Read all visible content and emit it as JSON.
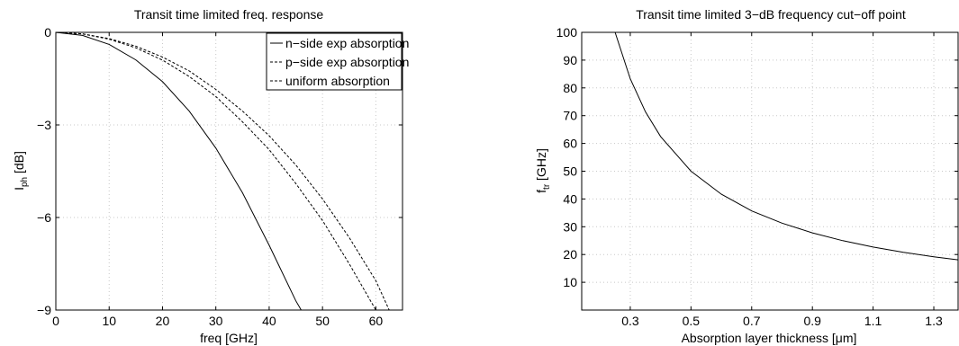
{
  "chart_data": [
    {
      "type": "line",
      "title": "Transit time limited freq. response",
      "xlabel": "freq [GHz]",
      "ylabel_main": "I",
      "ylabel_sub": "ph",
      "ylabel_unit": " [dB]",
      "xlim": [
        0,
        65
      ],
      "ylim": [
        -9,
        0
      ],
      "xticks": [
        0,
        10,
        20,
        30,
        40,
        50,
        60
      ],
      "yticks": [
        0,
        -3,
        -6,
        -9
      ],
      "grid": true,
      "legend_position": "top-right",
      "series": [
        {
          "name": "n−side exp absorption",
          "style": "solid",
          "x": [
            0,
            5,
            10,
            15,
            20,
            25,
            30,
            35,
            40,
            45,
            46
          ],
          "y": [
            0,
            -0.1,
            -0.39,
            -0.89,
            -1.6,
            -2.55,
            -3.75,
            -5.2,
            -6.9,
            -8.7,
            -9.0
          ]
        },
        {
          "name": "p−side exp absorption",
          "style": "dashed",
          "x": [
            0,
            5,
            10,
            15,
            20,
            25,
            30,
            35,
            40,
            45,
            50,
            55,
            60
          ],
          "y": [
            0,
            -0.05,
            -0.22,
            -0.5,
            -0.9,
            -1.43,
            -2.08,
            -2.9,
            -3.8,
            -4.9,
            -6.1,
            -7.5,
            -9.0
          ]
        },
        {
          "name": "uniform absorption",
          "style": "dashed",
          "x": [
            0,
            5,
            10,
            15,
            20,
            25,
            30,
            35,
            40,
            45,
            50,
            55,
            60,
            62.5
          ],
          "y": [
            0,
            -0.05,
            -0.2,
            -0.45,
            -0.8,
            -1.25,
            -1.85,
            -2.55,
            -3.35,
            -4.3,
            -5.4,
            -6.65,
            -8.05,
            -9.0
          ]
        }
      ]
    },
    {
      "type": "line",
      "title": "Transit time limited 3−dB frequency cut−off point",
      "xlabel": "Absorption layer thickness [μm]",
      "ylabel_main": "f",
      "ylabel_sub": "tr",
      "ylabel_unit": " [GHz]",
      "xlim": [
        0.14,
        1.38
      ],
      "ylim": [
        0,
        100
      ],
      "xticks": [
        0.3,
        0.5,
        0.7,
        0.9,
        1.1,
        1.3
      ],
      "xtick_labels": [
        "0.3",
        "0.5",
        "0.7",
        "0.9",
        "1.1",
        "1.3"
      ],
      "yticks": [
        10,
        20,
        30,
        40,
        50,
        60,
        70,
        80,
        90,
        100
      ],
      "grid": true,
      "series": [
        {
          "style": "solid",
          "x": [
            0.25,
            0.3,
            0.35,
            0.4,
            0.5,
            0.6,
            0.7,
            0.8,
            0.9,
            1.0,
            1.1,
            1.2,
            1.3,
            1.38
          ],
          "y": [
            100,
            83.3,
            71.4,
            62.5,
            50,
            41.7,
            35.7,
            31.3,
            27.8,
            25,
            22.7,
            20.8,
            19.2,
            18.1
          ]
        }
      ]
    }
  ]
}
